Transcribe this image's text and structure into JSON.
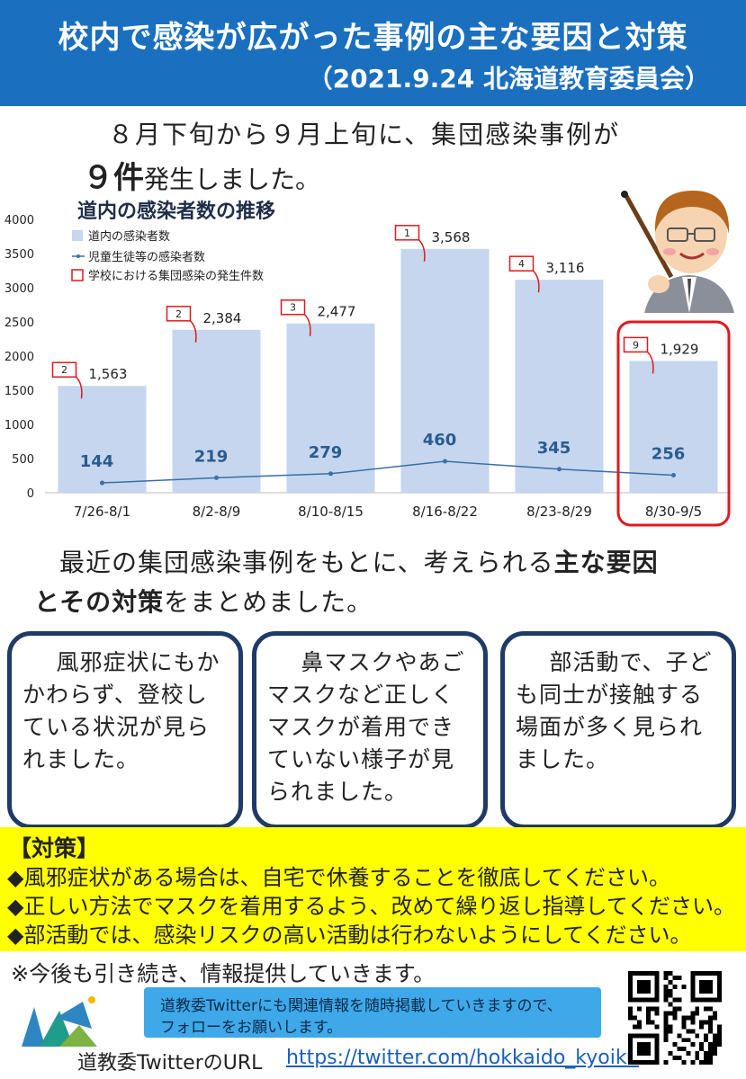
{
  "header": {
    "title": "校内で感染が広がった事例の主な要因と対策",
    "subtitle": "（2021.9.24 北海道教育委員会）"
  },
  "intro": {
    "line1": "８月下旬から９月上旬に、集団感染事例が",
    "count": "９件",
    "line2_rest": "発生しました。"
  },
  "chart_data": {
    "type": "bar",
    "title": "道内の感染者数の推移",
    "categories": [
      "7/26-8/1",
      "8/2-8/9",
      "8/10-8/15",
      "8/16-8/22",
      "8/23-8/29",
      "8/30-9/5"
    ],
    "ylim": [
      0,
      4000
    ],
    "yticks": [
      0,
      500,
      1000,
      1500,
      2000,
      2500,
      3000,
      3500,
      4000
    ],
    "legend_position": "top-left",
    "series": [
      {
        "name": "道内の感染者数",
        "type": "bar",
        "values": [
          1563,
          2384,
          2477,
          3568,
          3116,
          1929
        ],
        "labels": [
          "1,563",
          "2,384",
          "2,477",
          "3,568",
          "3,116",
          "1,929"
        ],
        "color": "#c5d6ee"
      },
      {
        "name": "児童生徒等の感染者数",
        "type": "line",
        "values": [
          144,
          219,
          279,
          460,
          345,
          256
        ],
        "color": "#3a6ea8"
      },
      {
        "name": "学校における集団感染の発生件数",
        "type": "callout",
        "values": [
          2,
          2,
          3,
          1,
          4,
          9
        ],
        "color": "#e0191d"
      }
    ],
    "highlight_category": "8/30-9/5"
  },
  "summary": {
    "pre": "最近の集団感染事例をもとに、考えられる",
    "bold1": "主な要因",
    "bold2": "とその対策",
    "post": "をまとめました。"
  },
  "factors": [
    "風邪症状にもかかわらず、登校している状況が見られました。",
    "鼻マスクやあごマスクなど正しくマスクが着用できていない様子が見られました。",
    "部活動で、子ども同士が接触する場面が多く見られました。"
  ],
  "measures": {
    "heading": "【対策】",
    "items": [
      "◆風邪症状がある場合は、自宅で休養することを徹底してください。",
      "◆正しい方法でマスクを着用するよう、改めて繰り返し指導してください。",
      "◆部活動では、感染リスクの高い活動は行わないようにしてください。"
    ]
  },
  "note": "※今後も引き続き、情報提供していきます。",
  "twitter": {
    "banner_line1": "道教委Twitterにも関連情報を随時掲載していきますので、",
    "banner_line2": "フォローをお願いします。",
    "label": "道教委TwitterのURL",
    "url": "https://twitter.com/hokkaido_kyoiku"
  },
  "colors": {
    "header": "#1a6fbf",
    "box_border": "#1f3a68",
    "measures_bg": "#ffff00",
    "banner": "#3ea8e8"
  }
}
